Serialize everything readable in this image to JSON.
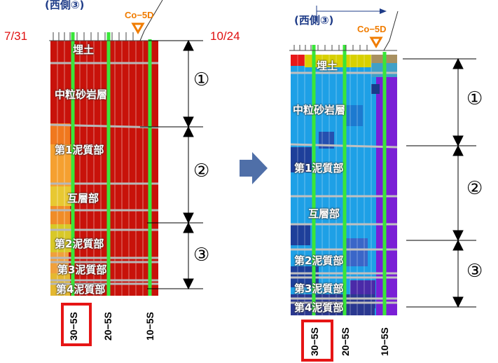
{
  "left_panel": {
    "date": "7/31",
    "section_title": "(西側③)",
    "sensor_label": "Co−5D",
    "layers": [
      "埋土",
      "中粒砂岩層",
      "第1泥質部",
      "互層部",
      "第2泥質部",
      "第3泥質部",
      "第4泥質部"
    ],
    "wells": [
      "30−5S",
      "20−5S",
      "10−5S"
    ]
  },
  "right_panel": {
    "date": "10/24",
    "section_title": "(西側③)",
    "sensor_label": "Co−5D",
    "layers": [
      "埋土",
      "中粒砂岩層",
      "第1泥質部",
      "互層部",
      "第2泥質部",
      "第3泥質部",
      "第4泥質部"
    ],
    "wells": [
      "30−5S",
      "20−5S",
      "10−5S"
    ]
  },
  "zones": [
    "①",
    "②",
    "③"
  ],
  "colors": {
    "left_background": "#c8120a",
    "right_background": "#1ea0e6",
    "right_deep": "#7a1fd6",
    "well_line": "#39e639",
    "highlight": "#e61515",
    "arrow": "#4f6fa8",
    "sensor_marker": "#f07c00"
  }
}
